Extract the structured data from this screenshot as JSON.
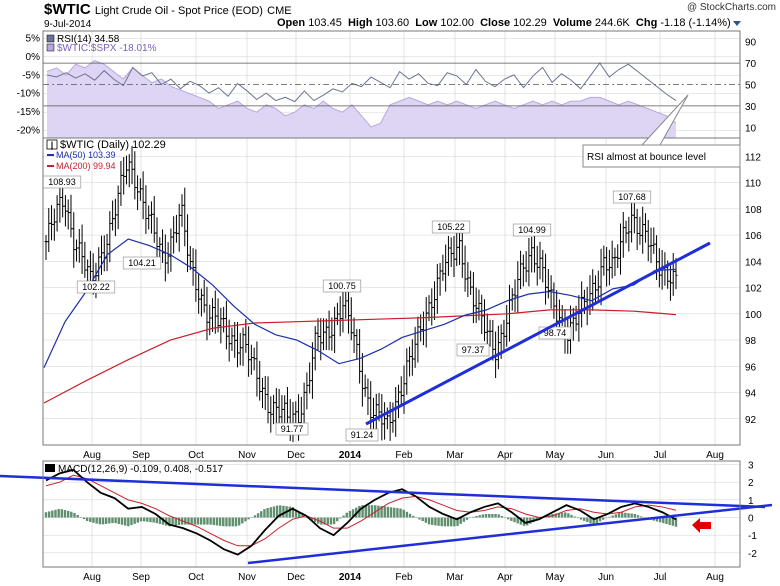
{
  "header": {
    "symbol": "$WTIC",
    "description": "Light Crude Oil - Spot Price (EOD)",
    "exchange": "CME",
    "date": "9-Jul-2014",
    "open_label": "Open",
    "open": "103.45",
    "high_label": "High",
    "high": "103.60",
    "low_label": "Low",
    "low": "102.00",
    "close_label": "Close",
    "close": "102.29",
    "volume_label": "Volume",
    "volume": "244.6K",
    "chg_label": "Chg",
    "chg": "-1.18 (-1.14%)",
    "copyright": "@ StockCharts.com"
  },
  "chart_data": [
    {
      "type": "line",
      "title": "RSI(14) 34.58",
      "series": [
        {
          "name": "RSI(14)",
          "value_label": "34.58",
          "color": "#6b7492",
          "values": [
            59,
            57,
            61,
            56,
            60,
            54,
            63,
            55,
            49,
            66,
            58,
            61,
            50,
            55,
            46,
            53,
            49,
            42,
            47,
            39,
            51,
            44,
            36,
            42,
            35,
            38,
            34,
            44,
            35,
            40,
            46,
            43,
            51,
            48,
            57,
            52,
            47,
            62,
            55,
            60,
            51,
            49,
            61,
            58,
            50,
            64,
            53,
            48,
            55,
            59,
            47,
            58,
            66,
            52,
            60,
            54,
            46,
            58,
            70,
            57,
            64,
            69,
            62,
            55,
            48,
            41,
            35
          ]
        },
        {
          "name": "$WTIC:$SPX",
          "value_label": "-18.01%",
          "color": "#b8a6e0",
          "fill": "#ddd5f3",
          "values": [
            -4,
            -3,
            -5,
            -2,
            -3,
            -1,
            -2,
            -4,
            -6,
            -3,
            -5,
            -7,
            -6,
            -8,
            -9,
            -10,
            -11,
            -12,
            -14,
            -13,
            -12,
            -14,
            -15,
            -13,
            -14,
            -16,
            -15,
            -13,
            -14,
            -12,
            -14,
            -15,
            -13,
            -16,
            -19,
            -18,
            -13,
            -12,
            -11,
            -12,
            -13,
            -12,
            -13,
            -12,
            -13,
            -14,
            -13,
            -12,
            -13,
            -14,
            -13,
            -12,
            -13,
            -12,
            -13,
            -12,
            -12,
            -11,
            -11,
            -12,
            -13,
            -12,
            -13,
            -14,
            -15,
            -16,
            -18
          ]
        }
      ],
      "left_axis_ticks": [
        "5%",
        "0%",
        "-5%",
        "-10%",
        "-15%",
        "-20%"
      ],
      "left_ylim": [
        -22,
        7
      ],
      "right_axis_ticks": [
        "90",
        "70",
        "50",
        "30",
        "10"
      ],
      "right_ylim": [
        0,
        100
      ],
      "reference_lines": [
        70,
        50,
        30
      ]
    },
    {
      "type": "line",
      "title": "$WTIC (Daily) 102.29",
      "series": [
        {
          "name": "$WTIC (Daily)",
          "value_label": "102.29",
          "color": "#000000",
          "values": [
            105.5,
            107.3,
            108.9,
            106.0,
            104.2,
            102.2,
            104.4,
            106.2,
            108.6,
            111.5,
            110.4,
            108.0,
            106.0,
            104.2,
            105.9,
            107.8,
            103.5,
            101.8,
            100.0,
            99.4,
            98.6,
            98.0,
            97.8,
            95.8,
            94.2,
            93.0,
            92.5,
            91.8,
            92.4,
            94.5,
            97.8,
            98.3,
            99.5,
            100.75,
            98.6,
            95.5,
            93.0,
            92.1,
            91.24,
            93.6,
            95.8,
            97.3,
            99.4,
            101.6,
            103.4,
            104.2,
            105.22,
            102.3,
            100.0,
            98.4,
            97.37,
            99.2,
            101.3,
            103.6,
            104.99,
            103.5,
            101.0,
            99.8,
            98.74,
            99.6,
            100.8,
            102.4,
            104.0,
            103.2,
            105.8,
            107.68,
            106.2,
            105.3,
            104.0,
            103.2,
            102.29
          ]
        },
        {
          "name": "MA(50)",
          "value_label": "103.39",
          "color": "#1c2fa8",
          "values": [
            95.9,
            99.4,
            101.7,
            104.5,
            105.7,
            105.2,
            104.5,
            103.5,
            102.2,
            100.6,
            99.2,
            98.4,
            98.0,
            97.2,
            96.2,
            96.6,
            97.3,
            98.2,
            98.7,
            99.2,
            99.9,
            100.3,
            101.0,
            101.5,
            101.7,
            101.4,
            101.0,
            101.9,
            102.2,
            103.3,
            103.39
          ]
        },
        {
          "name": "MA(200)",
          "value_label": "99.94",
          "color": "#c8202a",
          "values": [
            93.2,
            94.9,
            96.5,
            98.0,
            98.9,
            99.3,
            99.4,
            99.5,
            99.6,
            99.7,
            99.85,
            100.0,
            100.3,
            100.3,
            100.2,
            99.94
          ]
        }
      ],
      "annotations": [
        "108.93",
        "104.21",
        "102.22",
        "100.75",
        "91.77",
        "91.24",
        "105.22",
        "97.37",
        "104.99",
        "98.74",
        "107.68"
      ],
      "callout": "RSI almost at bounce level",
      "right_axis_ticks": [
        "112",
        "110",
        "108",
        "106",
        "104",
        "102",
        "100",
        "98",
        "96",
        "94",
        "92"
      ],
      "ylim": [
        90,
        113.4
      ],
      "trendlines": [
        "rising support from 91.24 low",
        "trendline into MACD-area callout"
      ]
    },
    {
      "type": "bar",
      "title": "MACD(12,26,9) -0.109, 0.408, -0.517",
      "series": [
        {
          "name": "MACD",
          "value_label": "-0.109",
          "color": "#000000",
          "values": [
            2.1,
            2.5,
            2.7,
            2.0,
            1.4,
            1.1,
            0.5,
            0.6,
            0.2,
            -0.4,
            -0.6,
            -0.9,
            -1.3,
            -1.8,
            -2.1,
            -1.6,
            -0.7,
            0.1,
            0.5,
            0.1,
            -0.6,
            -1.0,
            -0.3,
            0.5,
            1.0,
            1.4,
            1.6,
            1.2,
            0.6,
            0.2,
            -0.1,
            0.3,
            0.6,
            0.8,
            0.3,
            -0.3,
            -0.1,
            0.3,
            0.7,
            0.4,
            -0.1,
            0.2,
            0.6,
            0.8,
            0.6,
            0.3,
            -0.11
          ]
        },
        {
          "name": "Signal",
          "value_label": "0.408",
          "color": "#c8202a",
          "values": [
            1.8,
            2.0,
            2.4,
            2.2,
            1.8,
            1.4,
            1.0,
            0.8,
            0.5,
            0.1,
            -0.2,
            -0.5,
            -0.9,
            -1.3,
            -1.6,
            -1.6,
            -1.2,
            -0.6,
            -0.1,
            0.1,
            -0.2,
            -0.6,
            -0.6,
            -0.2,
            0.3,
            0.8,
            1.1,
            1.2,
            1.0,
            0.7,
            0.4,
            0.3,
            0.4,
            0.6,
            0.5,
            0.2,
            0.0,
            0.1,
            0.4,
            0.5,
            0.3,
            0.2,
            0.3,
            0.6,
            0.7,
            0.6,
            0.41
          ]
        },
        {
          "name": "Histogram",
          "value_label": "-0.517",
          "color": "#5f8f6f",
          "values": [
            0.3,
            0.5,
            0.3,
            -0.2,
            -0.4,
            -0.3,
            -0.5,
            -0.2,
            -0.3,
            -0.5,
            -0.4,
            -0.4,
            -0.4,
            -0.5,
            -0.5,
            0.0,
            0.5,
            0.7,
            0.6,
            0.0,
            -0.4,
            -0.4,
            0.3,
            0.7,
            0.7,
            0.6,
            0.5,
            0.0,
            -0.4,
            -0.5,
            -0.5,
            0.0,
            0.2,
            0.2,
            -0.2,
            -0.5,
            -0.1,
            0.2,
            0.3,
            -0.1,
            -0.4,
            0.0,
            0.3,
            0.2,
            -0.1,
            -0.3,
            -0.52
          ]
        }
      ],
      "right_axis_ticks": [
        "3",
        "2",
        "1",
        "0",
        "-1",
        "-2"
      ],
      "ylim": [
        -2.8,
        3.2
      ],
      "arrow_color": "#e00000"
    }
  ],
  "x_axis": {
    "month_labels": [
      "Aug",
      "Sep",
      "Oct",
      "Nov",
      "Dec",
      "2014",
      "Feb",
      "Mar",
      "Apr",
      "May",
      "Jun",
      "Jul",
      "Aug"
    ],
    "bold_label": "2014"
  },
  "colors": {
    "panel_border": "#777777",
    "grid": "#d0d0d0",
    "trendline": "#1f2ed9"
  }
}
